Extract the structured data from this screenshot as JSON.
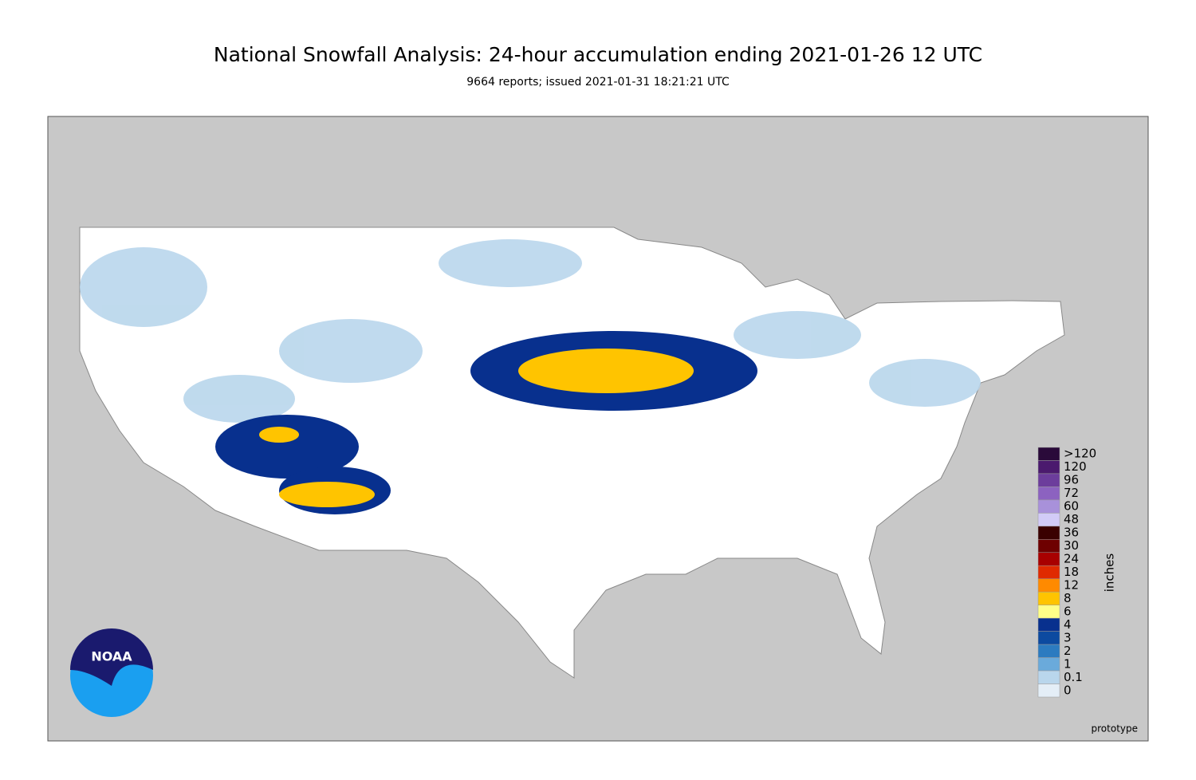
{
  "header": {
    "title": "National Snowfall Analysis: 24-hour accumulation ending 2021-01-26 12 UTC",
    "subtitle": "9664 reports; issued 2021-01-31 18:21:21 UTC"
  },
  "legend": {
    "title": "inches",
    "items": [
      {
        "label": ">120",
        "color": "#2a0a3a"
      },
      {
        "label": "120",
        "color": "#4b1a6e"
      },
      {
        "label": "96",
        "color": "#6c3d9c"
      },
      {
        "label": "72",
        "color": "#8c62c0"
      },
      {
        "label": "60",
        "color": "#a891da"
      },
      {
        "label": "48",
        "color": "#d2cbf7"
      },
      {
        "label": "36",
        "color": "#3a0000"
      },
      {
        "label": "30",
        "color": "#6e0000"
      },
      {
        "label": "24",
        "color": "#a80000"
      },
      {
        "label": "18",
        "color": "#e02a00"
      },
      {
        "label": "12",
        "color": "#ff8a00"
      },
      {
        "label": "8",
        "color": "#ffc400"
      },
      {
        "label": "6",
        "color": "#ffff88"
      },
      {
        "label": "4",
        "color": "#08308e"
      },
      {
        "label": "3",
        "color": "#0c4aa0"
      },
      {
        "label": "2",
        "color": "#2c7bc0"
      },
      {
        "label": "1",
        "color": "#6aaadb"
      },
      {
        "label": "0.1",
        "color": "#b9d6ec"
      },
      {
        "label": "0",
        "color": "#e4eef7"
      }
    ]
  },
  "logo": {
    "text": "NOAA"
  },
  "footer": {
    "note": "prototype"
  }
}
